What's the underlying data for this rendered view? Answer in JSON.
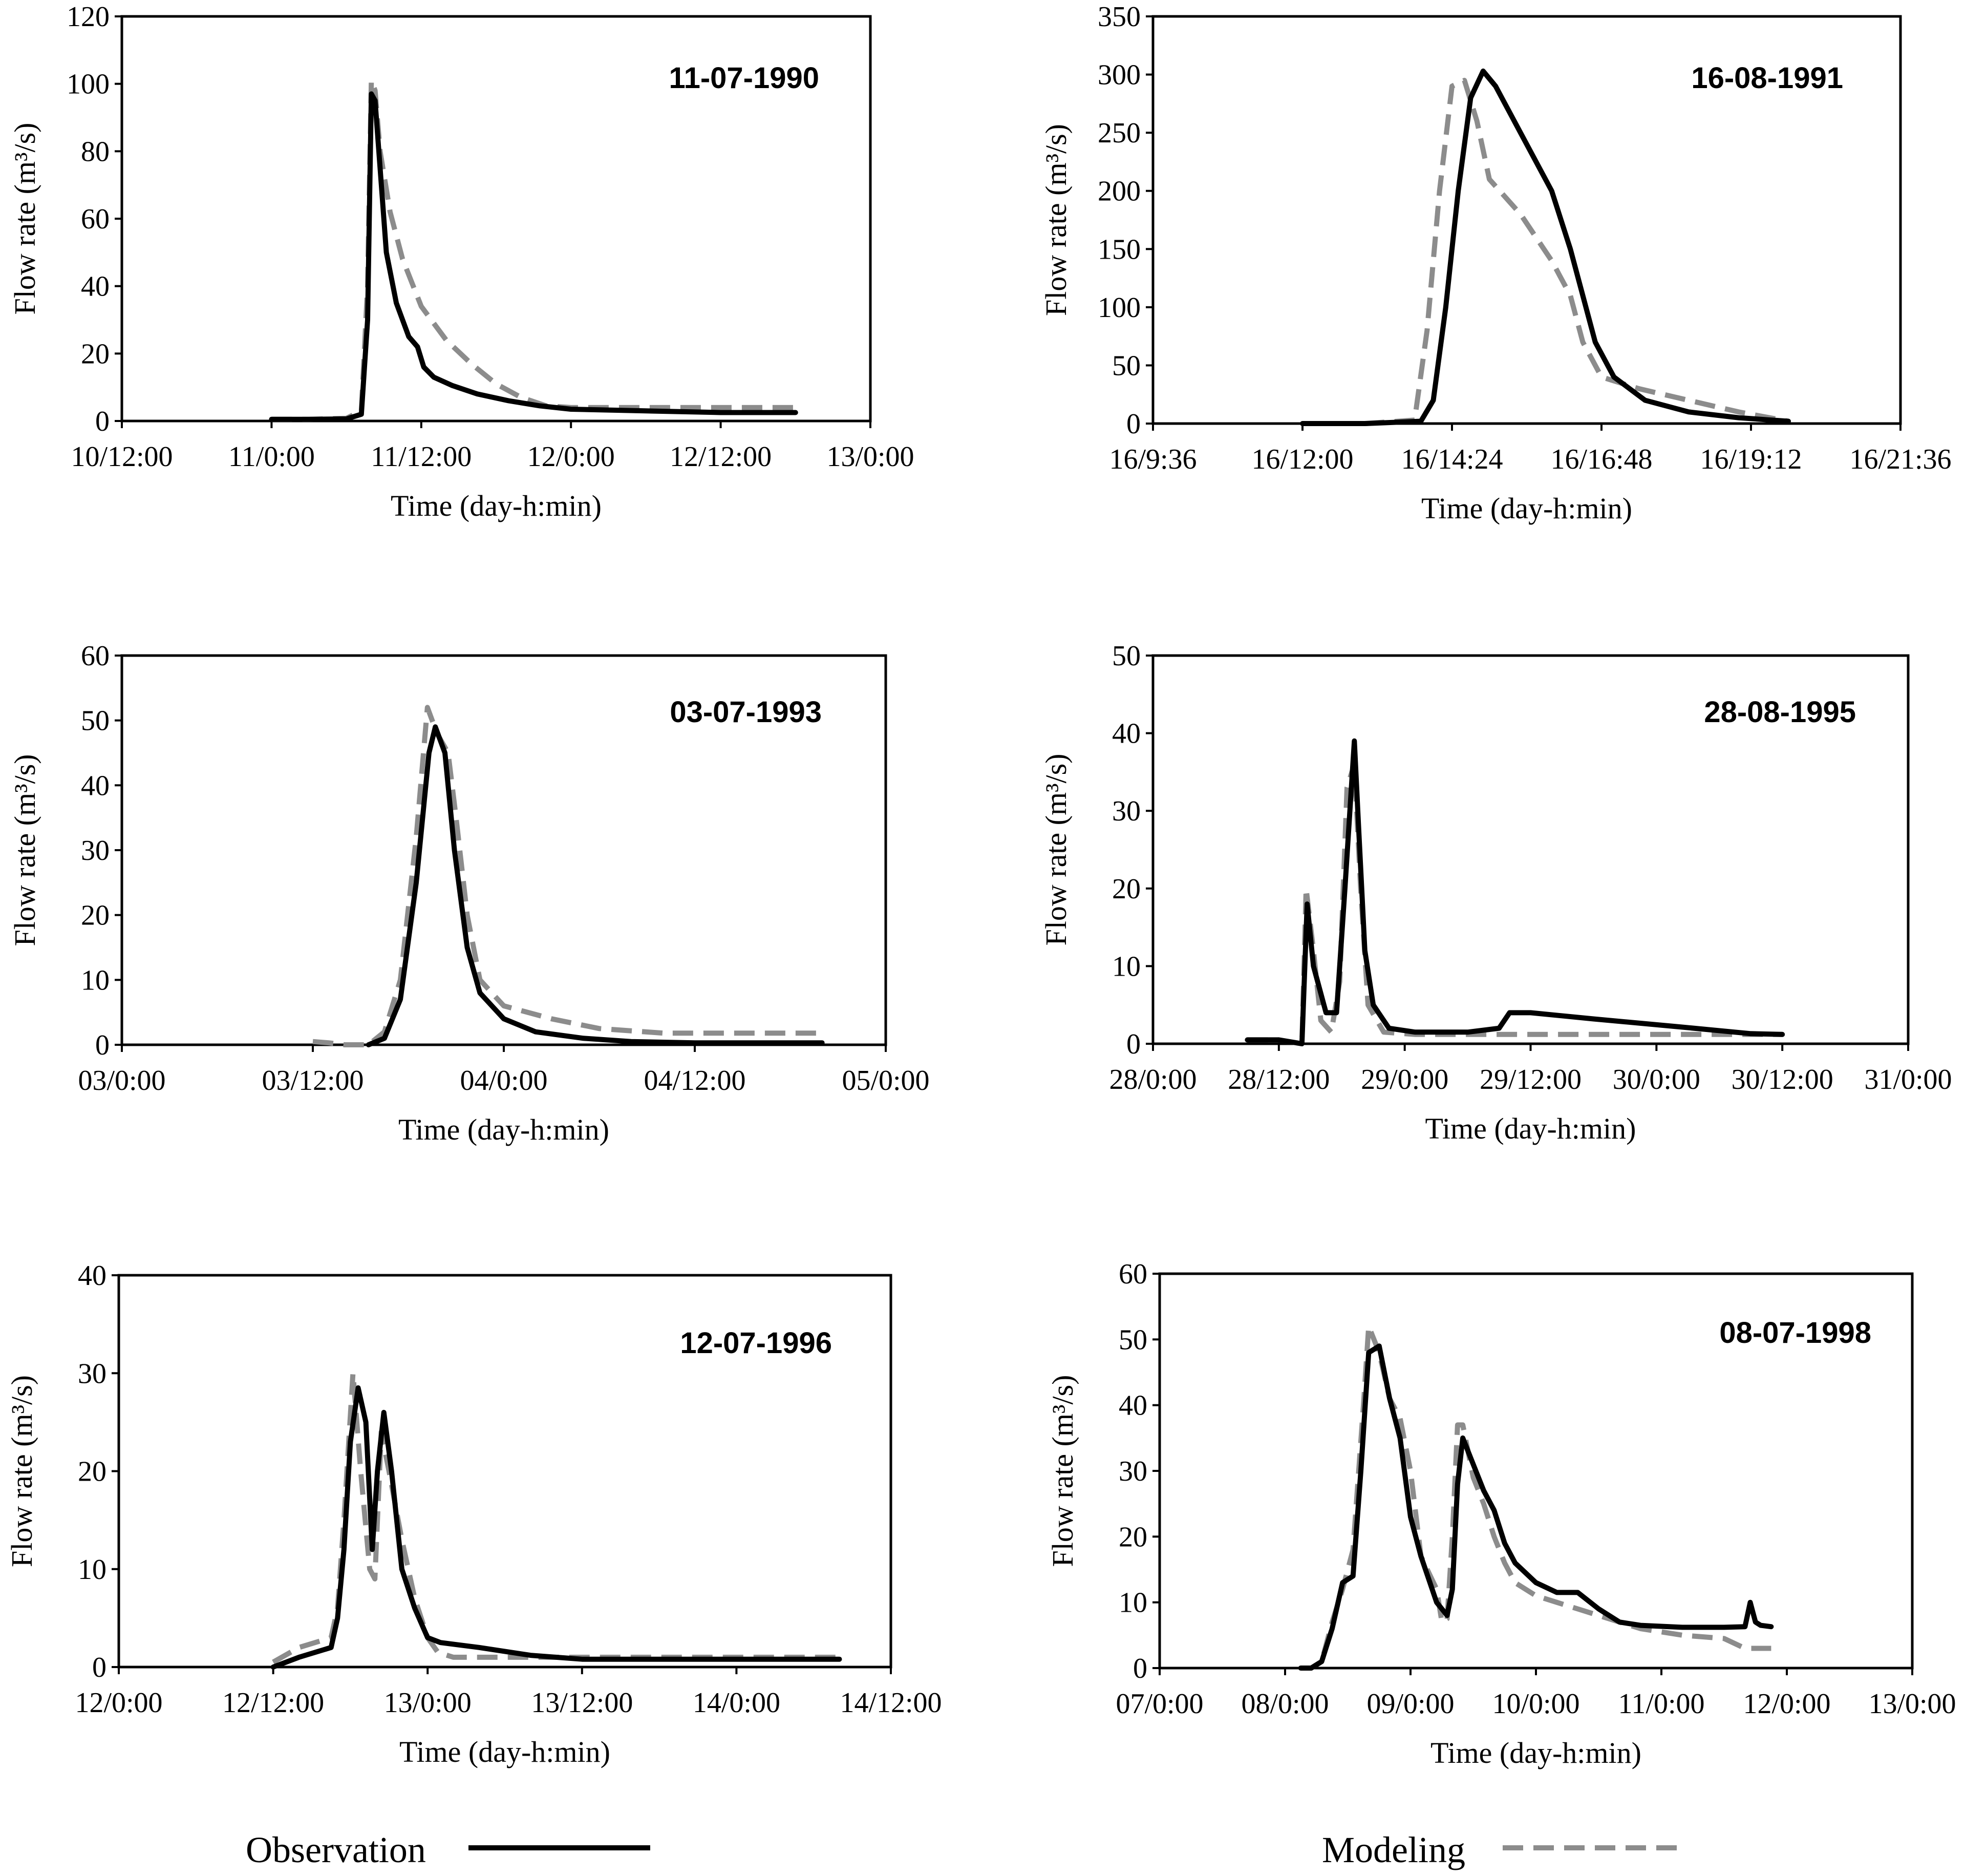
{
  "legend": {
    "observation": "Observation",
    "modeling": "Modeling"
  },
  "colors": {
    "observation": "#000000",
    "modeling": "#8c8c8c"
  },
  "chart_data": [
    {
      "type": "line",
      "title": "11-07-1990",
      "xlabel": "Time (day-h:min)",
      "ylabel": "Flow rate (m³/s)",
      "xlim": [
        0,
        60
      ],
      "ylim": [
        0,
        120
      ],
      "x_ticks": [
        0,
        12,
        24,
        36,
        48,
        60
      ],
      "x_tick_labels": [
        "10/12:00",
        "11/0:00",
        "11/12:00",
        "12/0:00",
        "12/12:00",
        "13/0:00"
      ],
      "y_ticks": [
        0,
        20,
        40,
        60,
        80,
        100,
        120
      ],
      "series": [
        {
          "name": "Observation",
          "x": [
            12,
            15,
            18,
            19.2,
            19.7,
            20,
            20.3,
            20.7,
            21.2,
            22,
            23,
            23.7,
            24.2,
            25,
            26.5,
            28.5,
            31,
            33.5,
            36,
            42,
            48,
            54
          ],
          "y": [
            0.5,
            0.5,
            0.6,
            2,
            30,
            97,
            95,
            75,
            50,
            35,
            25,
            22,
            16,
            13,
            10.5,
            8,
            6,
            4.5,
            3.5,
            3,
            2.5,
            2.5
          ]
        },
        {
          "name": "Modeling",
          "x": [
            12,
            15,
            18,
            19.2,
            19.7,
            20,
            20.3,
            20.7,
            21.5,
            22.5,
            24,
            26,
            28,
            30,
            32,
            34,
            36,
            42,
            48,
            54
          ],
          "y": [
            0.5,
            0.5,
            0.8,
            3,
            40,
            101,
            98,
            80,
            62,
            48,
            34,
            24,
            17,
            11,
            7,
            4.5,
            4,
            4,
            4,
            4
          ]
        }
      ]
    },
    {
      "type": "line",
      "title": "16-08-1991",
      "xlabel": "Time (day-h:min)",
      "ylabel": "Flow rate (m³/s)",
      "xlim": [
        9.6,
        21.6
      ],
      "ylim": [
        0,
        350
      ],
      "x_ticks": [
        9.6,
        12,
        14.4,
        16.8,
        19.2,
        21.6
      ],
      "x_tick_labels": [
        "16/9:36",
        "16/12:00",
        "16/14:24",
        "16/16:48",
        "16/19:12",
        "16/21:36"
      ],
      "y_ticks": [
        0,
        50,
        100,
        150,
        200,
        250,
        300,
        350
      ],
      "series": [
        {
          "name": "Observation",
          "x": [
            12,
            13,
            13.9,
            14.1,
            14.3,
            14.5,
            14.7,
            14.9,
            15.1,
            15.5,
            16,
            16.3,
            16.5,
            16.7,
            17,
            17.5,
            18.2,
            19,
            19.8
          ],
          "y": [
            0,
            0,
            2,
            20,
            100,
            200,
            280,
            303,
            290,
            250,
            200,
            150,
            110,
            70,
            40,
            20,
            10,
            5,
            2
          ]
        },
        {
          "name": "Modeling",
          "x": [
            12,
            13,
            13.8,
            14.0,
            14.2,
            14.4,
            14.6,
            14.8,
            15.0,
            15.5,
            16,
            16.3,
            16.5,
            16.8,
            17.4,
            18.2,
            19,
            19.8
          ],
          "y": [
            0,
            0,
            3,
            80,
            200,
            290,
            295,
            260,
            210,
            180,
            140,
            110,
            70,
            40,
            30,
            20,
            10,
            2
          ]
        }
      ]
    },
    {
      "type": "line",
      "title": "03-07-1993",
      "xlabel": "Time (day-h:min)",
      "ylabel": "Flow rate (m³/s)",
      "xlim": [
        0,
        48
      ],
      "ylim": [
        0,
        60
      ],
      "x_ticks": [
        0,
        12,
        24,
        36,
        48
      ],
      "x_tick_labels": [
        "03/0:00",
        "03/12:00",
        "04/0:00",
        "04/12:00",
        "05/0:00"
      ],
      "y_ticks": [
        0,
        10,
        20,
        30,
        40,
        50,
        60
      ],
      "series": [
        {
          "name": "Observation",
          "x": [
            15.5,
            16.5,
            17.5,
            18.5,
            19.3,
            19.7,
            20.3,
            20.9,
            21.7,
            22.5,
            24,
            26,
            29,
            32,
            36,
            40,
            44
          ],
          "y": [
            0,
            1,
            7,
            25,
            45,
            49,
            45,
            30,
            15,
            8,
            4,
            2,
            1,
            0.5,
            0.3,
            0.3,
            0.3
          ]
        },
        {
          "name": "Modeling",
          "x": [
            12,
            13,
            14,
            15.5,
            16.5,
            17.5,
            18.5,
            19.2,
            19.8,
            20.5,
            21,
            21.7,
            22.5,
            24,
            27,
            30,
            34,
            40,
            44
          ],
          "y": [
            0.5,
            0.3,
            0,
            0,
            2,
            10,
            32,
            52,
            48,
            45,
            35,
            20,
            10,
            6,
            4,
            2.5,
            1.8,
            1.8,
            1.8
          ]
        }
      ]
    },
    {
      "type": "line",
      "title": "28-08-1995",
      "xlabel": "Time (day-h:min)",
      "ylabel": "Flow rate (m³/s)",
      "xlim": [
        0,
        72
      ],
      "ylim": [
        0,
        50
      ],
      "x_ticks": [
        0,
        12,
        24,
        36,
        48,
        60,
        72
      ],
      "x_tick_labels": [
        "28/0:00",
        "28/12:00",
        "29/0:00",
        "29/12:00",
        "30/0:00",
        "30/12:00",
        "31/0:00"
      ],
      "y_ticks": [
        0,
        10,
        20,
        30,
        40,
        50
      ],
      "series": [
        {
          "name": "Observation",
          "x": [
            9,
            12,
            14.2,
            14.7,
            15.3,
            16.5,
            17.5,
            18.3,
            19.2,
            19.6,
            20.2,
            21,
            22.5,
            25,
            30,
            33,
            34,
            36,
            42,
            50,
            57,
            60
          ],
          "y": [
            0.5,
            0.5,
            0,
            18,
            10,
            4,
            4,
            20,
            39,
            28,
            12,
            5,
            2,
            1.5,
            1.5,
            2,
            4,
            4,
            3.2,
            2.2,
            1.3,
            1.2
          ]
        },
        {
          "name": "Modeling",
          "x": [
            9,
            12,
            14.2,
            14.6,
            15.3,
            16,
            17,
            17.8,
            18.5,
            19.2,
            19.8,
            20.5,
            22,
            25,
            30,
            36,
            42,
            50,
            60
          ],
          "y": [
            0.5,
            0.5,
            0,
            20,
            12,
            3,
            1.5,
            8,
            33,
            36,
            20,
            5,
            1.5,
            1.2,
            1.2,
            1.2,
            1.2,
            1.2,
            1.2
          ]
        }
      ]
    },
    {
      "type": "line",
      "title": "12-07-1996",
      "xlabel": "Time (day-h:min)",
      "ylabel": "Flow rate (m³/s)",
      "xlim": [
        0,
        60
      ],
      "ylim": [
        0,
        40
      ],
      "x_ticks": [
        0,
        12,
        24,
        36,
        48,
        60
      ],
      "x_tick_labels": [
        "12/0:00",
        "12/12:00",
        "13/0:00",
        "13/12:00",
        "14/0:00",
        "14/12:00"
      ],
      "y_ticks": [
        0,
        10,
        20,
        30,
        40
      ],
      "series": [
        {
          "name": "Observation",
          "x": [
            12,
            14,
            16.5,
            17,
            17.5,
            18,
            18.6,
            19.2,
            19.7,
            20.1,
            20.6,
            21.2,
            22,
            23,
            24,
            25,
            28,
            32,
            36,
            42,
            48,
            56
          ],
          "y": [
            0,
            1,
            2,
            5,
            12,
            23,
            28.5,
            25,
            12,
            20,
            26,
            20,
            10,
            6,
            3,
            2.5,
            2,
            1.2,
            0.8,
            0.8,
            0.8,
            0.8
          ]
        },
        {
          "name": "Modeling",
          "x": [
            12,
            14,
            16.5,
            17,
            17.5,
            18.2,
            18.8,
            19.5,
            19.9,
            20.4,
            21,
            22,
            23,
            24,
            24.8,
            26,
            30,
            36,
            42,
            48,
            56
          ],
          "y": [
            0.5,
            2,
            3,
            6,
            15,
            30,
            20,
            10,
            9,
            24,
            20,
            13,
            7,
            3,
            1.5,
            1,
            1,
            1,
            1,
            1,
            1
          ]
        }
      ]
    },
    {
      "type": "line",
      "title": "08-07-1998",
      "xlabel": "Time (day-h:min)",
      "ylabel": "Flow rate (m³/s)",
      "xlim": [
        0,
        144
      ],
      "ylim": [
        0,
        60
      ],
      "x_ticks": [
        0,
        24,
        48,
        72,
        96,
        120,
        144
      ],
      "x_tick_labels": [
        "07/0:00",
        "08/0:00",
        "09/0:00",
        "10/0:00",
        "11/0:00",
        "12/0:00",
        "13/0:00"
      ],
      "y_ticks": [
        0,
        10,
        20,
        30,
        40,
        50,
        60
      ],
      "series": [
        {
          "name": "Observation",
          "x": [
            27,
            29,
            31,
            33,
            35,
            37,
            38.5,
            40,
            42,
            44,
            46,
            48,
            50,
            53,
            55,
            56,
            57,
            58,
            60,
            62,
            64,
            66,
            68,
            72,
            76,
            80,
            84,
            88,
            92,
            100,
            108,
            112,
            113,
            114,
            115,
            117
          ],
          "y": [
            0,
            0,
            1,
            6,
            13,
            14,
            30,
            48,
            49,
            41,
            35,
            23,
            17,
            10,
            8,
            12,
            28,
            35,
            31,
            27,
            24,
            19,
            16,
            13,
            11.5,
            11.5,
            9,
            7,
            6.5,
            6.2,
            6.2,
            6.3,
            10,
            7,
            6.5,
            6.3
          ]
        },
        {
          "name": "Modeling",
          "x": [
            27,
            29,
            31,
            33,
            35,
            37,
            39,
            40,
            42,
            44,
            46,
            48,
            50,
            53,
            54,
            55,
            56,
            57,
            58,
            60,
            62,
            64,
            66,
            68,
            72,
            76,
            80,
            84,
            88,
            92,
            100,
            108,
            112,
            115,
            117
          ],
          "y": [
            0,
            0,
            1,
            7,
            12,
            18,
            40,
            52,
            48,
            41,
            38,
            30,
            17,
            12,
            7,
            7.5,
            20,
            37,
            37,
            29,
            25,
            20,
            16,
            13,
            11,
            10,
            9,
            8,
            7,
            6,
            5,
            4.5,
            3,
            3,
            3
          ]
        }
      ]
    }
  ]
}
